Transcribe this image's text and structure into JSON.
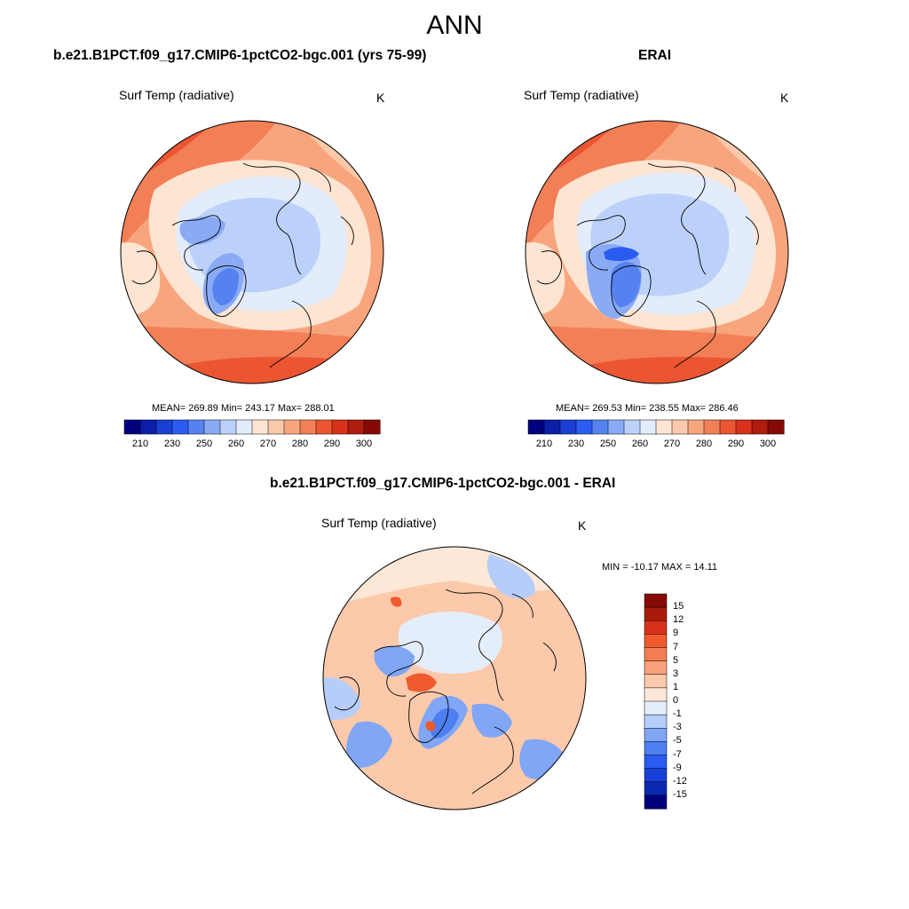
{
  "figure": {
    "title": "ANN",
    "variable": "Surf Temp (radiative)",
    "units": "K"
  },
  "colors": {
    "abs_scale": [
      "#00007f",
      "#0a1ea8",
      "#1a3fd4",
      "#2b5cf2",
      "#5582f0",
      "#8aaaf5",
      "#bcd1fa",
      "#e2ecfa",
      "#fde5d2",
      "#fbc9a9",
      "#f8a57e",
      "#f27f56",
      "#ec5531",
      "#d8321a",
      "#b01c0e",
      "#850a05"
    ],
    "diff_scale": [
      "#00007f",
      "#0a2ab0",
      "#1740d8",
      "#2b5cf2",
      "#4d7ff0",
      "#80a6f5",
      "#b6cdfa",
      "#e4eefa",
      "#fde8d8",
      "#fcc9ab",
      "#f9a27c",
      "#f47c52",
      "#ef5a2e",
      "#d8321a",
      "#a81b0b",
      "#850a05"
    ]
  },
  "panels": {
    "model": {
      "title": "b.e21.B1PCT.f09_g17.CMIP6-1pctCO2-bgc.001 (yrs 75-99)",
      "stats": "MEAN= 269.89  Min= 243.17  Max= 288.01"
    },
    "obs": {
      "title": "ERAI",
      "stats": "MEAN= 269.53  Min= 238.55  Max= 286.46"
    },
    "diff": {
      "title": "b.e21.B1PCT.f09_g17.CMIP6-1pctCO2-bgc.001 - ERAI",
      "stats": "MIN = -10.17 MAX =  14.11"
    }
  },
  "abs_ticks": [
    "210",
    "230",
    "250",
    "260",
    "270",
    "280",
    "290",
    "300"
  ],
  "diff_ticks": [
    "15",
    "12",
    "9",
    "7",
    "5",
    "3",
    "1",
    "0",
    "-1",
    "-3",
    "-5",
    "-7",
    "-9",
    "-12",
    "-15"
  ],
  "chart_data": [
    {
      "type": "heatmap",
      "title": "b.e21.B1PCT.f09_g17.CMIP6-1pctCO2-bgc.001 (yrs 75-99)",
      "projection": "north polar stereographic",
      "variable": "Surf Temp (radiative)",
      "units": "K",
      "mean": 269.89,
      "min": 243.17,
      "max": 288.01,
      "colorbar_ticks": [
        210,
        230,
        250,
        260,
        270,
        280,
        290,
        300
      ]
    },
    {
      "type": "heatmap",
      "title": "ERAI",
      "projection": "north polar stereographic",
      "variable": "Surf Temp (radiative)",
      "units": "K",
      "mean": 269.53,
      "min": 238.55,
      "max": 286.46,
      "colorbar_ticks": [
        210,
        230,
        250,
        260,
        270,
        280,
        290,
        300
      ]
    },
    {
      "type": "heatmap",
      "title": "b.e21.B1PCT.f09_g17.CMIP6-1pctCO2-bgc.001 - ERAI",
      "projection": "north polar stereographic",
      "variable": "Surf Temp (radiative)",
      "units": "K",
      "min": -10.17,
      "max": 14.11,
      "colorbar_ticks": [
        15,
        12,
        9,
        7,
        5,
        3,
        1,
        0,
        -1,
        -3,
        -5,
        -7,
        -9,
        -12,
        -15
      ]
    }
  ]
}
